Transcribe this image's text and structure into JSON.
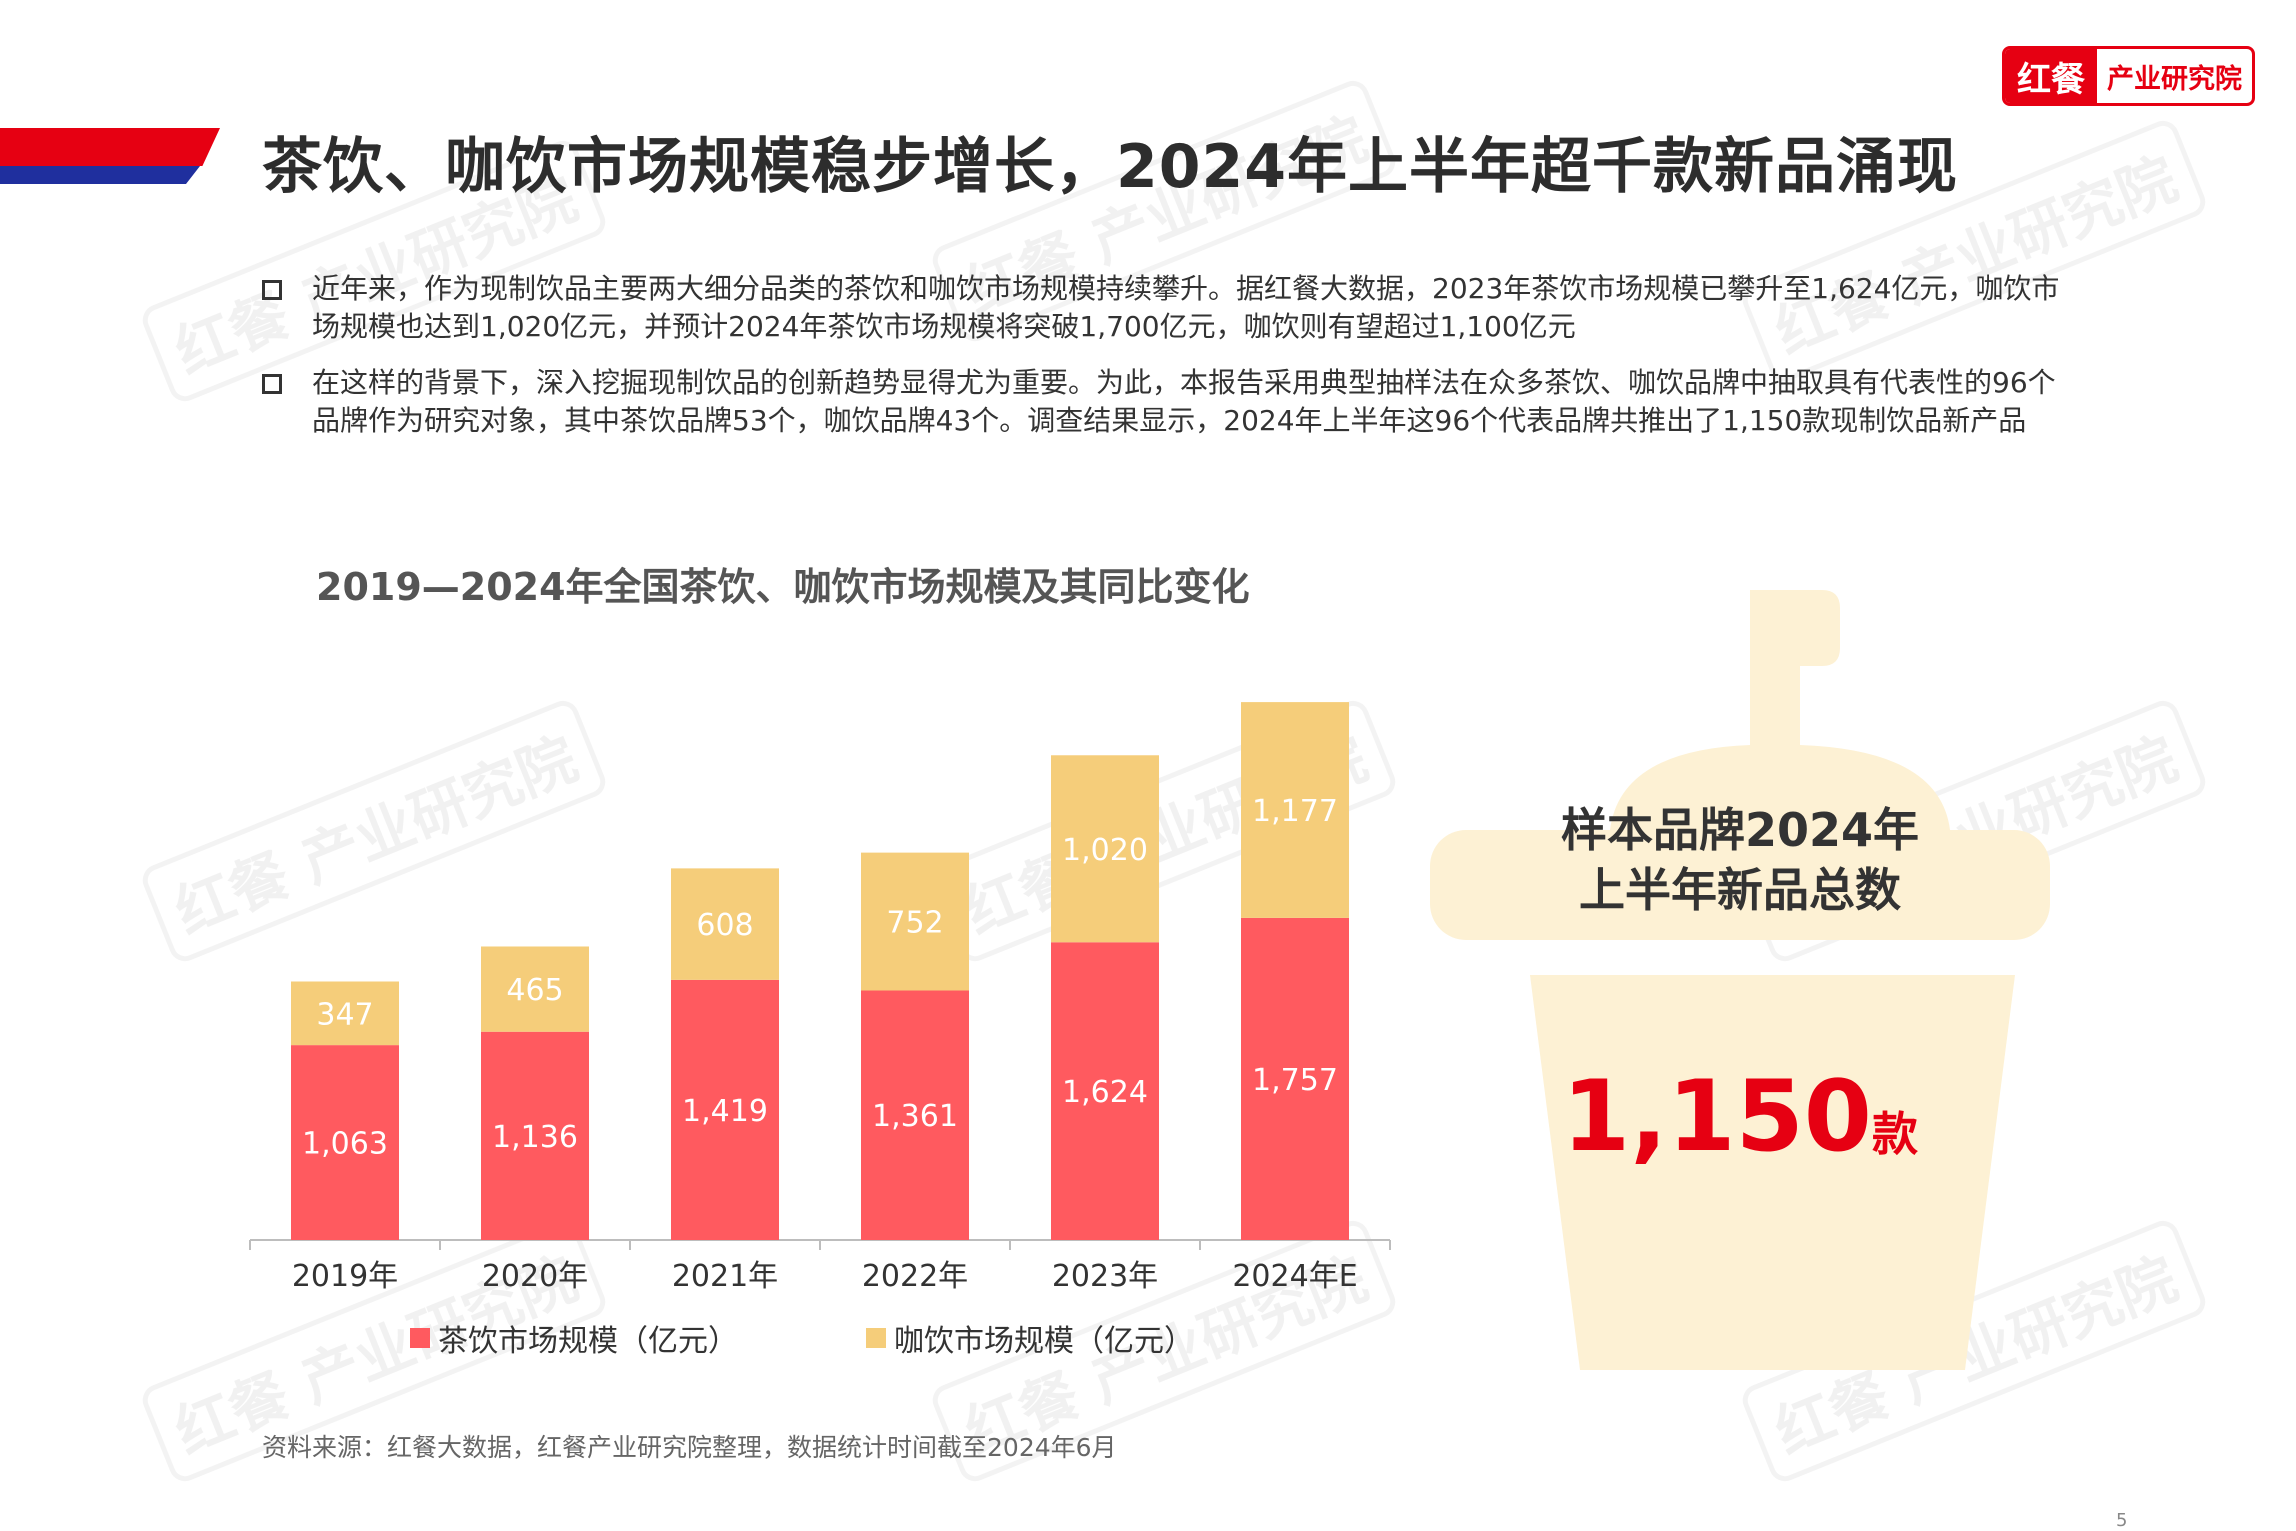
{
  "logo": {
    "mark": "红餐",
    "text": "产业研究院"
  },
  "title": "茶饮、咖饮市场规模稳步增长，2024年上半年超千款新品涌现",
  "bullets": [
    "近年来，作为现制饮品主要两大细分品类的茶饮和咖饮市场规模持续攀升。据红餐大数据，2023年茶饮市场规模已攀升至1,624亿元，咖饮市场规模也达到1,020亿元，并预计2024年茶饮市场规模将突破1,700亿元，咖饮则有望超过1,100亿元",
    "在这样的背景下，深入挖掘现制饮品的创新趋势显得尤为重要。为此，本报告采用典型抽样法在众多茶饮、咖饮品牌中抽取具有代表性的96个品牌作为研究对象，其中茶饮品牌53个，咖饮品牌43个。调查结果显示，2024年上半年这96个代表品牌共推出了1,150款现制饮品新产品"
  ],
  "chart_data": {
    "type": "bar",
    "stacked": true,
    "title": "2019—2024年全国茶饮、咖饮市场规模及其同比变化",
    "categories": [
      "2019年",
      "2020年",
      "2021年",
      "2022年",
      "2023年",
      "2024年E"
    ],
    "series": [
      {
        "name": "茶饮市场规模（亿元）",
        "color": "#ff5a5f",
        "values": [
          1063,
          1136,
          1419,
          1361,
          1624,
          1757
        ],
        "labels": [
          "1,063",
          "1,136",
          "1,419",
          "1,361",
          "1,624",
          "1,757"
        ]
      },
      {
        "name": "咖饮市场规模（亿元）",
        "color": "#f5cd7a",
        "values": [
          347,
          465,
          608,
          752,
          1020,
          1177
        ],
        "labels": [
          "347",
          "465",
          "608",
          "752",
          "1,020",
          "1,177"
        ]
      }
    ],
    "ylim": [
      0,
      3000
    ],
    "grid": false,
    "legend_position": "bottom"
  },
  "highlight": {
    "label_line1": "样本品牌2024年",
    "label_line2": "上半年新品总数",
    "value": "1,150",
    "unit": "款"
  },
  "source": "资料来源：红餐大数据，红餐产业研究院整理，数据统计时间截至2024年6月",
  "page_number": "5",
  "watermark": "红餐 产业研究院"
}
